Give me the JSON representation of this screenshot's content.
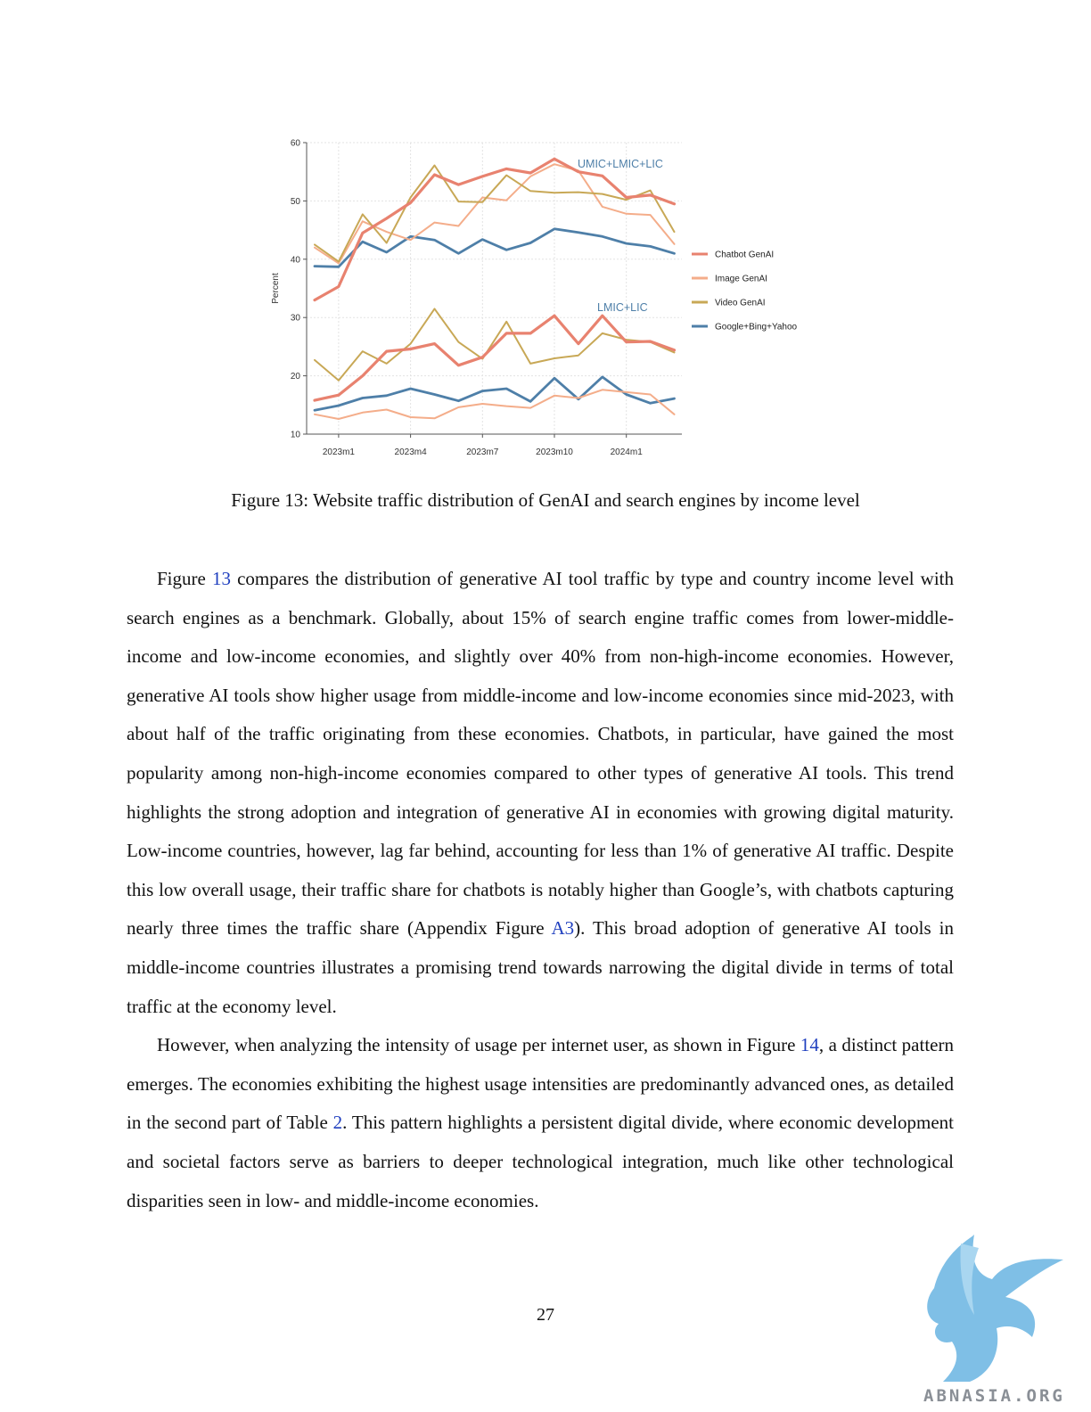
{
  "figure": {
    "caption_label": "Figure 13:",
    "caption_text": "Website traffic distribution of GenAI and search engines by income level"
  },
  "chart_data": {
    "type": "line",
    "ylabel": "Percent",
    "xlabel": "",
    "ylim": [
      10,
      60
    ],
    "yticks": [
      10,
      20,
      30,
      40,
      50,
      60
    ],
    "x": [
      "2022m12",
      "2023m1",
      "2023m2",
      "2023m3",
      "2023m4",
      "2023m5",
      "2023m6",
      "2023m7",
      "2023m8",
      "2023m9",
      "2023m10",
      "2023m11",
      "2023m12",
      "2024m1",
      "2024m2",
      "2024m3"
    ],
    "xtick_labels": [
      "2023m1",
      "2023m4",
      "2023m7",
      "2023m10",
      "2024m1"
    ],
    "xtick_indices": [
      1,
      4,
      7,
      10,
      13
    ],
    "grid": true,
    "legend_position": "right",
    "annotations": [
      "UMIC+LMIC+LIC",
      "LMIC+LIC"
    ],
    "series": [
      {
        "name": "Chatbot GenAI",
        "group": "UMIC+LMIC+LIC",
        "color": "#e8826f",
        "values": [
          33.0,
          35.3,
          44.5,
          47.0,
          49.7,
          54.5,
          52.8,
          54.2,
          55.5,
          54.8,
          57.2,
          55.0,
          54.3,
          50.6,
          51.0,
          49.5
        ]
      },
      {
        "name": "Image GenAI",
        "group": "UMIC+LMIC+LIC",
        "color": "#f4ad8a",
        "values": [
          42.0,
          39.3,
          46.5,
          44.7,
          43.3,
          46.3,
          45.7,
          50.6,
          50.1,
          54.2,
          56.3,
          55.2,
          49.0,
          47.8,
          47.6,
          42.6
        ]
      },
      {
        "name": "Video GenAI",
        "group": "UMIC+LMIC+LIC",
        "color": "#c8a856",
        "values": [
          42.5,
          39.6,
          47.7,
          42.8,
          50.6,
          56.1,
          49.9,
          49.8,
          54.4,
          51.7,
          51.4,
          51.5,
          51.2,
          50.2,
          51.8,
          44.7
        ]
      },
      {
        "name": "Google+Bing+Yahoo",
        "group": "UMIC+LMIC+LIC",
        "color": "#4e7fa8",
        "values": [
          38.8,
          38.7,
          43.0,
          41.2,
          43.9,
          43.3,
          41.0,
          43.4,
          41.6,
          42.8,
          45.2,
          44.6,
          43.9,
          42.7,
          42.2,
          41.0
        ]
      },
      {
        "name": "Chatbot GenAI",
        "group": "LMIC+LIC",
        "color": "#e8826f",
        "values": [
          15.8,
          16.7,
          20.0,
          24.2,
          24.6,
          25.5,
          21.8,
          23.2,
          27.3,
          27.3,
          30.3,
          25.5,
          30.3,
          25.8,
          25.9,
          24.4
        ]
      },
      {
        "name": "Image GenAI",
        "group": "LMIC+LIC",
        "color": "#f4ad8a",
        "values": [
          13.4,
          12.6,
          13.7,
          14.2,
          12.9,
          12.7,
          14.6,
          15.2,
          14.8,
          14.5,
          16.6,
          16.2,
          17.6,
          17.2,
          16.8,
          13.4
        ]
      },
      {
        "name": "Video GenAI",
        "group": "LMIC+LIC",
        "color": "#c8a856",
        "values": [
          22.7,
          19.2,
          24.2,
          22.1,
          25.5,
          31.5,
          25.8,
          22.9,
          29.3,
          22.1,
          23.0,
          23.5,
          27.3,
          26.2,
          25.8,
          24.0
        ]
      },
      {
        "name": "Google+Bing+Yahoo",
        "group": "LMIC+LIC",
        "color": "#4e7fa8",
        "values": [
          14.1,
          14.9,
          16.2,
          16.6,
          17.8,
          16.8,
          15.7,
          17.4,
          17.8,
          15.6,
          19.6,
          16.0,
          19.8,
          16.8,
          15.3,
          16.1
        ]
      }
    ],
    "legend": [
      {
        "label": "Chatbot GenAI",
        "color": "#e8826f"
      },
      {
        "label": "Image GenAI",
        "color": "#f4ad8a"
      },
      {
        "label": "Video GenAI",
        "color": "#c8a856"
      },
      {
        "label": "Google+Bing+Yahoo",
        "color": "#4e7fa8"
      }
    ]
  },
  "paragraphs": [
    [
      {
        "t": "Figure "
      },
      {
        "t": "13",
        "ref": true
      },
      {
        "t": " compares the distribution of generative AI tool traffic by type and country income level with search engines as a benchmark.  Globally, about 15% of search engine traffic comes from lower-middle-income and low-income economies, and slightly over 40% from non-high-income economies.  However, generative AI tools show higher usage from middle-income and low-income economies since mid-2023, with about half of the traffic originating from these economies. Chatbots, in particular, have gained the most popularity among non-high-income economies compared to other types of generative AI tools.  This trend highlights the strong adoption and integration of generative AI in economies with growing digital maturity.  Low-income countries, however, lag far behind, accounting for less than 1% of generative AI traffic.  Despite this low overall usage, their traffic share for chatbots is notably higher than Google’s, with chatbots capturing nearly three times the traffic share (Appendix Figure "
      },
      {
        "t": "A3",
        "ref": true
      },
      {
        "t": "). This broad adoption of generative AI tools in middle-income countries illustrates a promising trend towards narrowing the digital divide in terms of total traffic at the economy level."
      }
    ],
    [
      {
        "t": "However, when analyzing the intensity of usage per internet user, as shown in Figure "
      },
      {
        "t": "14",
        "ref": true
      },
      {
        "t": ", a distinct pattern emerges. The economies exhibiting the highest usage intensities are predominantly advanced ones, as detailed in the second part of Table "
      },
      {
        "t": "2",
        "ref": true
      },
      {
        "t": ". This pattern highlights a persistent digital divide, where economic development and societal factors serve as barriers to deeper technological integration, much like other technological disparities seen in low- and middle-income economies."
      }
    ]
  ],
  "page_number": "27",
  "watermark": {
    "text": "ABNASIA.ORG",
    "icon": "griffin-logo-icon",
    "color": "#7fbfe6"
  }
}
